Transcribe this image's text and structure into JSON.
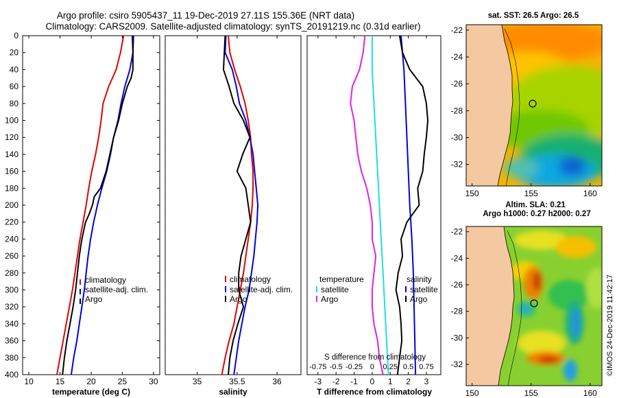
{
  "header": {
    "line1": "Argo profile: csiro 5905437_11 19-Dec-2019 27.11S 155.36E (NRT data)",
    "line2": "Climatology: CARS2009. Satellite-adjusted climatology: synTS_20191219.nc (0.31d earlier)"
  },
  "colors": {
    "climatology": "#e00000",
    "satellite": "#0000dd",
    "argo": "#000000",
    "magenta": "#dd22dd",
    "cyan": "#22dddd",
    "land": "#f4c8a0"
  },
  "chart_data": [
    {
      "type": "line",
      "name": "temperature-profile",
      "xlabel": "temperature (deg C)",
      "ylabel": "depth",
      "xlim": [
        9,
        31
      ],
      "ylim": [
        400,
        0
      ],
      "xticks": [
        "10",
        "15",
        "20",
        "25",
        "30"
      ],
      "yticks": [
        "0",
        "20",
        "40",
        "60",
        "80",
        "100",
        "120",
        "140",
        "160",
        "180",
        "200",
        "220",
        "240",
        "260",
        "280",
        "300",
        "320",
        "340",
        "360",
        "380",
        "400"
      ],
      "legend": [
        "climatology",
        "satellite-adj. clim.",
        "Argo"
      ],
      "series": [
        {
          "name": "climatology",
          "color": "#e00000",
          "depth": [
            0,
            20,
            40,
            60,
            80,
            100,
            120,
            140,
            160,
            180,
            200,
            220,
            240,
            260,
            280,
            300,
            320,
            340,
            360,
            380,
            400
          ],
          "values": [
            25.2,
            24.7,
            24.0,
            22.8,
            21.9,
            21.6,
            21.2,
            20.7,
            20.1,
            19.6,
            19.2,
            18.7,
            18.2,
            17.8,
            17.4,
            17.0,
            16.5,
            16.0,
            15.5,
            15.0,
            14.5
          ]
        },
        {
          "name": "satellite-adj. clim.",
          "color": "#0000dd",
          "depth": [
            0,
            20,
            40,
            60,
            80,
            100,
            120,
            140,
            160,
            180,
            200,
            220,
            240,
            260,
            280,
            300,
            320,
            340,
            360,
            380,
            400
          ],
          "values": [
            26.8,
            26.7,
            26.2,
            25.4,
            24.8,
            24.3,
            23.6,
            23.1,
            22.5,
            21.7,
            21.0,
            20.4,
            19.9,
            19.5,
            19.2,
            18.9,
            18.5,
            18.1,
            17.7,
            17.2,
            16.8
          ]
        },
        {
          "name": "Argo",
          "color": "#000000",
          "depth": [
            0,
            20,
            40,
            50,
            60,
            80,
            100,
            120,
            140,
            160,
            180,
            190,
            200,
            210,
            220,
            240,
            260,
            280,
            300,
            320,
            340,
            360,
            380,
            400
          ],
          "values": [
            26.6,
            26.7,
            26.7,
            26.4,
            25.8,
            25.0,
            24.4,
            23.6,
            23.0,
            22.4,
            21.5,
            20.5,
            20.2,
            19.7,
            19.1,
            18.5,
            18.1,
            17.8,
            17.5,
            17.1,
            16.6,
            16.1,
            15.7,
            15.4
          ]
        }
      ]
    },
    {
      "type": "line",
      "name": "salinity-profile",
      "xlabel": "salinity",
      "xlim": [
        34.6,
        36.3
      ],
      "ylim": [
        400,
        0
      ],
      "xticks": [
        "35",
        "35.5",
        "36"
      ],
      "legend": [
        "climatology",
        "satellite-adj. clim.",
        "Argo"
      ],
      "series": [
        {
          "name": "climatology",
          "color": "#e00000",
          "depth": [
            0,
            20,
            40,
            60,
            80,
            100,
            120,
            140,
            160,
            180,
            200,
            220,
            240,
            260,
            280,
            300,
            320,
            340,
            360,
            380,
            400
          ],
          "values": [
            35.39,
            35.41,
            35.47,
            35.54,
            35.6,
            35.64,
            35.67,
            35.68,
            35.7,
            35.7,
            35.69,
            35.67,
            35.64,
            35.61,
            35.58,
            35.54,
            35.5,
            35.46,
            35.4,
            35.35,
            35.31
          ]
        },
        {
          "name": "satellite-adj. clim.",
          "color": "#0000dd",
          "depth": [
            0,
            20,
            40,
            60,
            80,
            100,
            120,
            140,
            160,
            180,
            200,
            220,
            240,
            260,
            280,
            300,
            320,
            340,
            360,
            380,
            400
          ],
          "values": [
            35.36,
            35.35,
            35.44,
            35.49,
            35.53,
            35.61,
            35.66,
            35.7,
            35.72,
            35.74,
            35.76,
            35.75,
            35.73,
            35.71,
            35.68,
            35.65,
            35.6,
            35.56,
            35.52,
            35.49,
            35.46
          ]
        },
        {
          "name": "Argo",
          "color": "#000000",
          "depth": [
            0,
            20,
            40,
            60,
            80,
            100,
            120,
            140,
            160,
            180,
            200,
            220,
            240,
            260,
            280,
            300,
            320,
            340,
            360,
            380,
            400
          ],
          "values": [
            35.35,
            35.34,
            35.33,
            35.4,
            35.46,
            35.58,
            35.66,
            35.57,
            35.5,
            35.61,
            35.64,
            35.67,
            35.61,
            35.55,
            35.52,
            35.52,
            35.58,
            35.51,
            35.45,
            35.41,
            35.39
          ]
        }
      ]
    },
    {
      "type": "line",
      "name": "difference-from-climatology",
      "xlabel": "T difference from climatology",
      "xlabel_top": "S difference from climatology",
      "xlim": [
        -3.6,
        3.8
      ],
      "ylim": [
        400,
        0
      ],
      "xticks": [
        "-3",
        "-2",
        "-1",
        "0",
        "1",
        "2",
        "3"
      ],
      "sticks": [
        "-0.75",
        "-0.5",
        "-0.25",
        "0",
        "0.25",
        "0.5",
        "0.75"
      ],
      "legend_temperature_title": "temperature",
      "legend_salinity_title": "salinity",
      "legend": [
        "satellite",
        "Argo"
      ],
      "series": [
        {
          "name": "temperature satellite",
          "color": "#22dddd",
          "depth": [
            0,
            40,
            80,
            120,
            160,
            200,
            240,
            280,
            320,
            360,
            400
          ],
          "values": [
            0.0,
            0.0,
            0.1,
            0.2,
            0.3,
            0.4,
            0.5,
            0.6,
            0.7,
            0.8,
            0.9
          ]
        },
        {
          "name": "temperature Argo",
          "color": "#dd22dd",
          "depth": [
            0,
            20,
            40,
            60,
            80,
            100,
            120,
            140,
            160,
            180,
            200,
            220,
            240,
            260,
            280,
            300,
            320,
            340,
            360,
            380,
            400
          ],
          "values": [
            -0.4,
            -0.5,
            -0.7,
            -1.1,
            -1.2,
            -1.0,
            -0.9,
            -0.8,
            -0.6,
            -0.3,
            -0.1,
            0.0,
            0.0,
            0.2,
            0.1,
            0.0,
            0.0,
            0.1,
            0.3,
            0.4,
            0.6
          ]
        },
        {
          "name": "salinity satellite",
          "color": "#0000dd",
          "depth": [
            0,
            40,
            80,
            120,
            160,
            200,
            240,
            280,
            320,
            360,
            400
          ],
          "values": [
            0.4,
            0.44,
            0.46,
            0.48,
            0.5,
            0.52,
            0.55,
            0.57,
            0.58,
            0.59,
            0.6
          ]
        },
        {
          "name": "salinity Argo",
          "color": "#000000",
          "depth": [
            0,
            20,
            40,
            60,
            80,
            100,
            120,
            140,
            160,
            180,
            200,
            220,
            240,
            260,
            280,
            300,
            320,
            340,
            360,
            380,
            400
          ],
          "values": [
            0.38,
            0.42,
            0.52,
            0.7,
            0.75,
            0.77,
            0.75,
            0.72,
            0.7,
            0.63,
            0.65,
            0.48,
            0.4,
            0.42,
            0.36,
            0.33,
            0.38,
            0.4,
            0.41,
            0.38,
            0.35
          ]
        }
      ]
    },
    {
      "type": "heatmap",
      "name": "sst-map",
      "title": "sat. SST: 26.5 Argo: 26.5",
      "xticks": [
        "150",
        "155",
        "160"
      ],
      "yticks": [
        "-22",
        "-24",
        "-26",
        "-28",
        "-30",
        "-32"
      ],
      "xlim": [
        149.5,
        161
      ],
      "ylim": [
        -33.6,
        -21.6
      ],
      "marker": {
        "lon": 155.36,
        "lat": -27.11
      }
    },
    {
      "type": "heatmap",
      "name": "sla-map",
      "title": "Altim. SLA: 0.21",
      "subtitle": "Argo h1000: 0.27 h2000: 0.27",
      "xticks": [
        "150",
        "155",
        "160"
      ],
      "yticks": [
        "-22",
        "-24",
        "-26",
        "-28",
        "-30",
        "-32"
      ],
      "xlim": [
        149.5,
        161
      ],
      "ylim": [
        -33.6,
        -21.6
      ],
      "marker": {
        "lon": 155.36,
        "lat": -27.11
      }
    }
  ],
  "credit": "©IMOS 24-Dec-2019 11:42:17"
}
